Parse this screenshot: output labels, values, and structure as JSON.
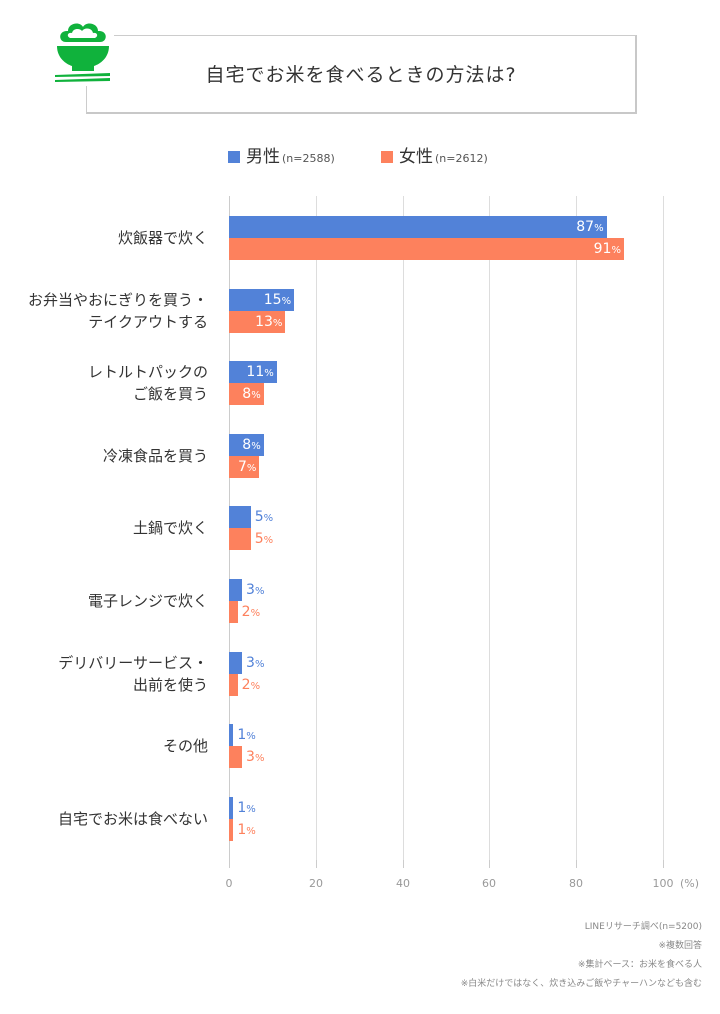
{
  "header": {
    "title": "自宅でお米を食べるときの方法は?",
    "icon": "rice-bowl-chopsticks-icon"
  },
  "legend": {
    "male": {
      "label": "男性",
      "n": "(n=2588)",
      "color": "#5282d8"
    },
    "female": {
      "label": "女性",
      "n": "(n=2612)",
      "color": "#fd815d"
    }
  },
  "axis": {
    "ticks": [
      "0",
      "20",
      "40",
      "60",
      "80",
      "100"
    ],
    "unit": "(%)"
  },
  "notes": [
    "LINEリサーチ調べ(n=5200)",
    "※複数回答",
    "※集計ベース：お米を食べる人",
    "※白米だけではなく、炊き込みご飯やチャーハンなども含む"
  ],
  "chart_data": {
    "type": "bar",
    "orientation": "horizontal",
    "title": "自宅でお米を食べるときの方法は?",
    "xlabel": "(%)",
    "ylabel": "",
    "xlim": [
      0,
      100
    ],
    "xticks": [
      0,
      20,
      40,
      60,
      80,
      100
    ],
    "grid": true,
    "legend_position": "top",
    "categories": [
      "炊飯器で炊く",
      "お弁当やおにぎりを買う・テイクアウトする",
      "レトルトパックのご飯を買う",
      "冷凍食品を買う",
      "土鍋で炊く",
      "電子レンジで炊く",
      "デリバリーサービス・出前を使う",
      "その他",
      "自宅でお米は食べない"
    ],
    "category_lines": [
      [
        "炊飯器で炊く"
      ],
      [
        "お弁当やおにぎりを買う・",
        "テイクアウトする"
      ],
      [
        "レトルトパックの",
        "ご飯を買う"
      ],
      [
        "冷凍食品を買う"
      ],
      [
        "土鍋で炊く"
      ],
      [
        "電子レンジで炊く"
      ],
      [
        "デリバリーサービス・",
        "出前を使う"
      ],
      [
        "その他"
      ],
      [
        "自宅でお米は食べない"
      ]
    ],
    "series": [
      {
        "name": "男性(n=2588)",
        "color": "#5282d8",
        "values": [
          87,
          15,
          11,
          8,
          5,
          3,
          3,
          1,
          1
        ]
      },
      {
        "name": "女性(n=2612)",
        "color": "#fd815d",
        "values": [
          91,
          13,
          8,
          7,
          5,
          2,
          2,
          3,
          1
        ]
      }
    ],
    "value_suffix": "%",
    "source": "LINEリサーチ調べ(n=5200)"
  }
}
